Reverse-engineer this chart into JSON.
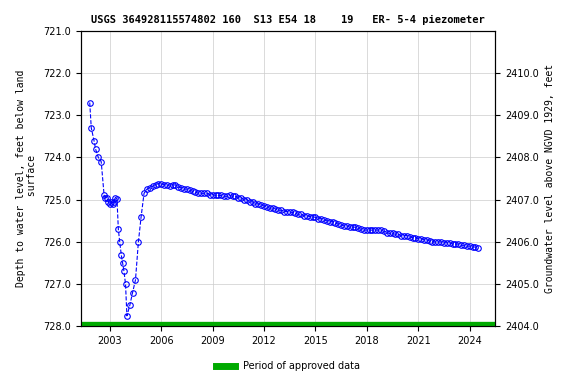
{
  "title": "USGS 364928115574802 160  S13 E54 18    19   ER- 5-4 piezometer",
  "ylabel_left": "Depth to water level, feet below land\n surface",
  "ylabel_right": "Groundwater level above NGVD 1929, feet",
  "ylim_left": [
    721.0,
    728.0
  ],
  "ylim_right": [
    2404.0,
    2411.0
  ],
  "yticks_left": [
    721.0,
    722.0,
    723.0,
    724.0,
    725.0,
    726.0,
    727.0,
    728.0
  ],
  "yticks_right": [
    2404.0,
    2405.0,
    2406.0,
    2407.0,
    2408.0,
    2409.0,
    2410.0
  ],
  "xticks": [
    2003,
    2006,
    2009,
    2012,
    2015,
    2018,
    2021,
    2024
  ],
  "xlim": [
    2001.3,
    2025.5
  ],
  "line_color": "#0000ff",
  "marker": "o",
  "marker_facecolor": "none",
  "marker_edgecolor": "#0000ff",
  "marker_size": 4,
  "linestyle": "--",
  "linewidth": 0.8,
  "grid_color": "#cccccc",
  "bg_color": "#ffffff",
  "legend_label": "Period of approved data",
  "legend_color": "#00aa00",
  "data_x": [
    2001.83,
    2001.92,
    2002.08,
    2002.17,
    2002.33,
    2002.5,
    2002.67,
    2002.75,
    2002.83,
    2002.92,
    2003.0,
    2003.08,
    2003.17,
    2003.25,
    2003.33,
    2003.42,
    2003.5,
    2003.58,
    2003.67,
    2003.75,
    2003.83,
    2003.92,
    2004.0,
    2004.17,
    2004.33,
    2004.5,
    2004.67,
    2004.83,
    2005.0,
    2005.17,
    2005.33,
    2005.5,
    2005.67,
    2005.83,
    2006.0,
    2006.17,
    2006.33,
    2006.5,
    2006.67,
    2006.83,
    2007.0,
    2007.17,
    2007.33,
    2007.5,
    2007.67,
    2007.83,
    2008.0,
    2008.17,
    2008.33,
    2008.5,
    2008.67,
    2008.83,
    2009.0,
    2009.17,
    2009.33,
    2009.5,
    2009.67,
    2009.83,
    2010.0,
    2010.17,
    2010.33,
    2010.5,
    2010.67,
    2010.83,
    2011.0,
    2011.17,
    2011.33,
    2011.5,
    2011.67,
    2011.83,
    2012.0,
    2012.17,
    2012.33,
    2012.5,
    2012.67,
    2012.83,
    2013.0,
    2013.17,
    2013.33,
    2013.5,
    2013.67,
    2013.83,
    2014.0,
    2014.17,
    2014.33,
    2014.5,
    2014.67,
    2014.83,
    2015.0,
    2015.17,
    2015.33,
    2015.5,
    2015.67,
    2015.83,
    2016.0,
    2016.17,
    2016.33,
    2016.5,
    2016.67,
    2016.83,
    2017.0,
    2017.17,
    2017.33,
    2017.5,
    2017.67,
    2017.83,
    2018.0,
    2018.17,
    2018.33,
    2018.5,
    2018.67,
    2018.83,
    2019.0,
    2019.17,
    2019.33,
    2019.5,
    2019.67,
    2019.83,
    2020.0,
    2020.17,
    2020.33,
    2020.5,
    2020.67,
    2020.83,
    2021.0,
    2021.17,
    2021.33,
    2021.5,
    2021.67,
    2021.83,
    2022.0,
    2022.17,
    2022.33,
    2022.5,
    2022.67,
    2022.83,
    2023.0,
    2023.17,
    2023.33,
    2023.5,
    2023.67,
    2023.83,
    2024.0,
    2024.17,
    2024.33,
    2024.5
  ],
  "data_y": [
    722.7,
    723.3,
    723.6,
    723.8,
    724.0,
    724.1,
    724.9,
    724.95,
    724.95,
    725.05,
    725.1,
    725.05,
    725.1,
    725.05,
    724.95,
    724.98,
    725.7,
    726.0,
    726.3,
    726.5,
    726.7,
    727.0,
    727.75,
    727.5,
    727.2,
    726.9,
    726.0,
    725.4,
    724.85,
    724.75,
    724.72,
    724.68,
    724.65,
    724.62,
    724.62,
    724.65,
    724.65,
    724.68,
    724.65,
    724.65,
    724.7,
    724.72,
    724.75,
    724.75,
    724.78,
    724.8,
    724.82,
    724.85,
    724.85,
    724.85,
    724.85,
    724.88,
    724.88,
    724.9,
    724.9,
    724.9,
    724.92,
    724.92,
    724.9,
    724.92,
    724.92,
    724.95,
    724.95,
    725.0,
    725.0,
    725.05,
    725.05,
    725.1,
    725.1,
    725.12,
    725.15,
    725.18,
    725.2,
    725.2,
    725.22,
    725.25,
    725.25,
    725.28,
    725.28,
    725.3,
    725.3,
    725.32,
    725.35,
    725.35,
    725.38,
    725.38,
    725.4,
    725.4,
    725.42,
    725.45,
    725.45,
    725.48,
    725.5,
    725.52,
    725.52,
    725.55,
    725.58,
    725.6,
    725.62,
    725.62,
    725.65,
    725.65,
    725.65,
    725.68,
    725.7,
    725.72,
    725.72,
    725.72,
    725.72,
    725.72,
    725.72,
    725.72,
    725.75,
    725.78,
    725.8,
    725.8,
    725.82,
    725.82,
    725.85,
    725.85,
    725.85,
    725.88,
    725.9,
    725.9,
    725.92,
    725.92,
    725.95,
    725.95,
    725.98,
    726.0,
    726.0,
    726.0,
    726.0,
    726.02,
    726.02,
    726.02,
    726.05,
    726.05,
    726.05,
    726.08,
    726.08,
    726.1,
    726.1,
    726.12,
    726.12,
    726.15
  ]
}
